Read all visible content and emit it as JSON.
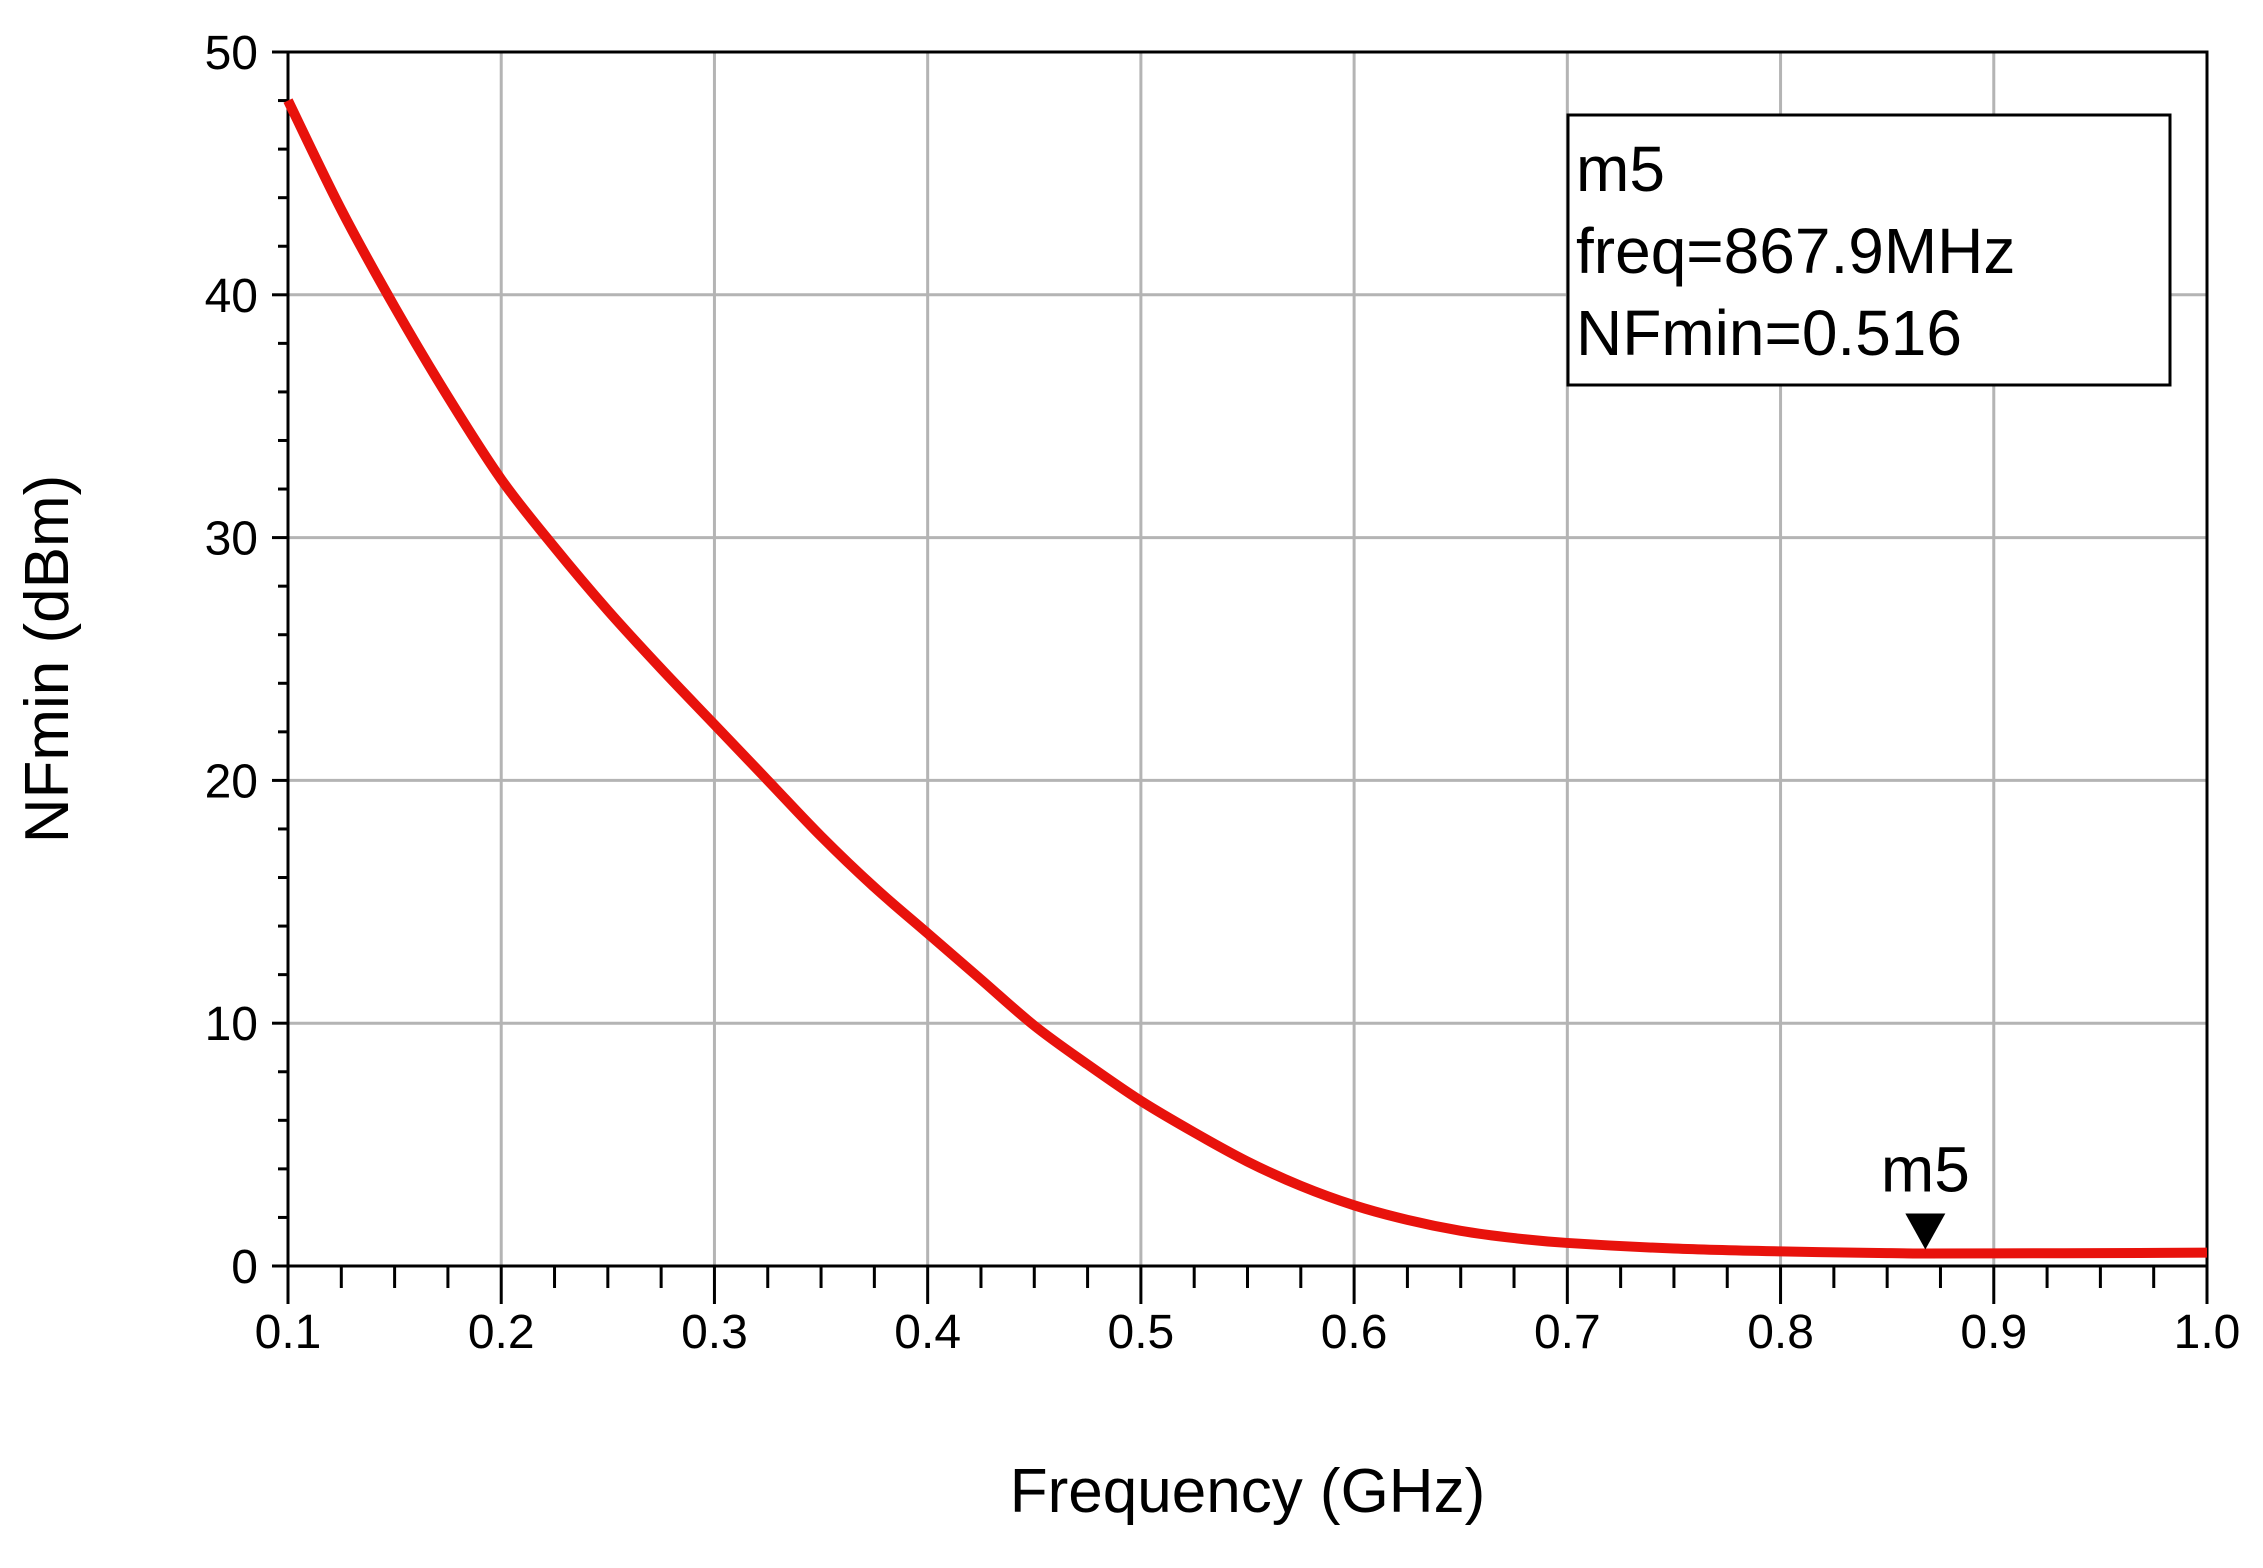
{
  "chart_data": {
    "type": "line",
    "xlabel": "Frequency (GHz)",
    "ylabel": "NFmin (dBm)",
    "xlim": [
      0.1,
      1.0
    ],
    "ylim": [
      0,
      50
    ],
    "x_ticks": [
      0.1,
      0.2,
      0.3,
      0.4,
      0.5,
      0.6,
      0.7,
      0.8,
      0.9,
      1.0
    ],
    "x_tick_labels": [
      "0.1",
      "0.2",
      "0.3",
      "0.4",
      "0.5",
      "0.6",
      "0.7",
      "0.8",
      "0.9",
      "1.0"
    ],
    "y_ticks": [
      0,
      10,
      20,
      30,
      40,
      50
    ],
    "y_tick_labels": [
      "0",
      "10",
      "20",
      "30",
      "40",
      "50"
    ],
    "grid": true,
    "series": [
      {
        "color": "#e8120c",
        "x": [
          0.1,
          0.125,
          0.15,
          0.175,
          0.2,
          0.225,
          0.25,
          0.275,
          0.3,
          0.325,
          0.35,
          0.375,
          0.4,
          0.425,
          0.45,
          0.475,
          0.5,
          0.525,
          0.55,
          0.575,
          0.6,
          0.625,
          0.65,
          0.675,
          0.7,
          0.75,
          0.8,
          0.85,
          0.8679,
          0.9,
          0.95,
          1.0
        ],
        "y": [
          48.0,
          43.5,
          39.5,
          35.8,
          32.4,
          29.6,
          27.0,
          24.6,
          22.3,
          20.0,
          17.7,
          15.6,
          13.7,
          11.8,
          9.9,
          8.3,
          6.8,
          5.5,
          4.3,
          3.3,
          2.5,
          1.9,
          1.45,
          1.15,
          0.95,
          0.72,
          0.6,
          0.53,
          0.516,
          0.52,
          0.53,
          0.55
        ]
      }
    ],
    "marker": {
      "name": "m5",
      "label_lines": [
        "m5",
        "freq=867.9MHz",
        "NFmin=0.516"
      ],
      "x": 0.8679,
      "y": 0.516
    },
    "marker_box_position": "top-right"
  }
}
